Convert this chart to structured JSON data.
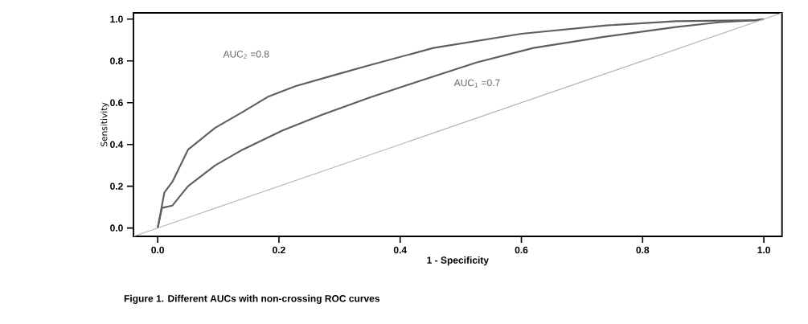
{
  "chart_data": {
    "type": "line",
    "xlabel": "1   - Specificity",
    "ylabel": "Sensitivity",
    "xlim": [
      -0.04,
      1.03
    ],
    "ylim": [
      -0.04,
      1.03
    ],
    "xticks": [
      {
        "value": 0,
        "label": "0.0"
      },
      0.2,
      0.4,
      0.6,
      0.8,
      {
        "value": 1,
        "label": "1.0"
      }
    ],
    "yticks": [
      {
        "value": 0,
        "label": "0.0"
      },
      0.2,
      0.4,
      0.6,
      0.8,
      {
        "value": 1,
        "label": "1.0"
      }
    ],
    "grid": false,
    "marker": "none",
    "line_style": "solid",
    "series": [
      {
        "color": "#5f5f5f",
        "x": [
          0,
          0.011,
          0.024,
          0.05,
          0.095,
          0.14,
          0.183,
          0.228,
          0.295,
          0.35,
          0.455,
          0.6,
          0.74,
          0.855,
          0.987,
          1
        ],
        "values": [
          0,
          0.17,
          0.22,
          0.375,
          0.48,
          0.555,
          0.63,
          0.68,
          0.735,
          0.78,
          0.862,
          0.93,
          0.97,
          0.99,
          0.995,
          1
        ]
      },
      {
        "color": "#5f5f5f",
        "x": [
          0,
          0.007,
          0.024,
          0.05,
          0.095,
          0.14,
          0.206,
          0.272,
          0.35,
          0.433,
          0.527,
          0.62,
          0.738,
          0.855,
          0.926,
          0.987,
          1
        ],
        "values": [
          0,
          0.096,
          0.107,
          0.2,
          0.3,
          0.375,
          0.467,
          0.543,
          0.625,
          0.705,
          0.793,
          0.862,
          0.916,
          0.962,
          0.985,
          0.995,
          1
        ]
      },
      {
        "color": "#b0b0b0",
        "x": [
          -0.04,
          1.03
        ],
        "values": [
          -0.04,
          1.03
        ]
      }
    ],
    "annotations": [
      "AUC$_{2}$ =0.8",
      "AUC$_{1}$ =0.7",
      "Figure 1. Different AUCs with non-crossing ROC curves"
    ]
  }
}
